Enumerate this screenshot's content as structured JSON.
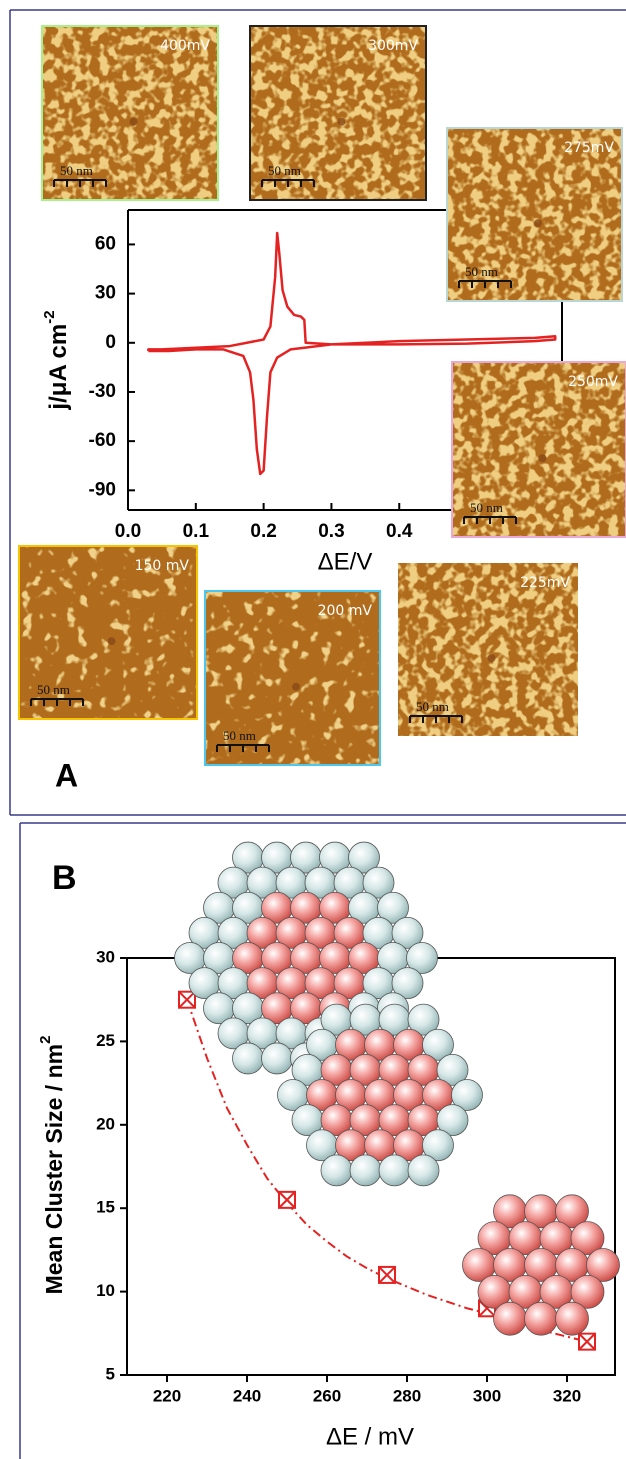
{
  "chart_data": [
    {
      "type": "line",
      "panel_label": "A",
      "xlabel": "ΔE/V",
      "ylabel": "j/μA cm",
      "ylabel_superscript": "-2",
      "color": "#e52222",
      "x": [
        0.03,
        0.06,
        0.1,
        0.14,
        0.17,
        0.18,
        0.185,
        0.19,
        0.195,
        0.2,
        0.205,
        0.21,
        0.22,
        0.24,
        0.26,
        0.3,
        0.4,
        0.5,
        0.6,
        0.63,
        0.63,
        0.6,
        0.5,
        0.4,
        0.3,
        0.262,
        0.26,
        0.255,
        0.245,
        0.235,
        0.228,
        0.223,
        0.22,
        0.217,
        0.21,
        0.2,
        0.15,
        0.1,
        0.05,
        0.03,
        0.03
      ],
      "values": [
        -5,
        -5,
        -4,
        -4,
        -8,
        -18,
        -35,
        -65,
        -80,
        -78,
        -45,
        -18,
        -9,
        -4,
        -3,
        -1,
        1,
        2,
        3,
        4,
        2,
        1,
        -0.5,
        -1,
        -1,
        0,
        14,
        16,
        17,
        22,
        32,
        55,
        67,
        40,
        10,
        2,
        -2,
        -3,
        -4,
        -4,
        -5
      ],
      "xlim": [
        0,
        0.64
      ],
      "ylim": [
        -102,
        81
      ],
      "xticks": [
        {
          "value": 0,
          "label": "0.0"
        },
        {
          "value": 0.1,
          "label": "0.1"
        },
        {
          "value": 0.2,
          "label": "0.2"
        },
        {
          "value": 0.3,
          "label": "0.3"
        },
        {
          "value": 0.4,
          "label": "0.4"
        }
      ],
      "yticks": [
        -90,
        -60,
        -30,
        0,
        30,
        60
      ],
      "insets": [
        {
          "label": "400mV",
          "scale": "50 nm"
        },
        {
          "label": "300mV",
          "scale": "50 nm"
        },
        {
          "label": "275mV",
          "scale": "50 nm"
        },
        {
          "label": "250mV",
          "scale": "50 nm"
        },
        {
          "label": "150 mV",
          "scale": "50 nm"
        },
        {
          "label": "200 mV",
          "scale": "50 nm"
        },
        {
          "label": "225mV",
          "scale": "50 nm"
        }
      ]
    },
    {
      "type": "scatter",
      "panel_label": "B",
      "xlabel": "ΔE / mV",
      "ylabel": "Mean Cluster Size / nm",
      "ylabel_superscript": "2",
      "color": "#e52222",
      "x": [
        225,
        250,
        275,
        300,
        325
      ],
      "values": [
        27.5,
        15.5,
        11,
        9,
        7
      ],
      "fit": {
        "x": [
          225,
          230,
          235,
          240,
          245,
          250,
          255,
          260,
          265,
          270,
          275,
          280,
          285,
          290,
          295,
          300,
          305,
          310,
          315,
          320,
          325
        ],
        "values": [
          27.5,
          24,
          21,
          18.8,
          16.8,
          15.3,
          14,
          13,
          12.1,
          11.4,
          10.8,
          10.3,
          9.8,
          9.4,
          9,
          8.7,
          8.3,
          8,
          7.6,
          7.3,
          7
        ]
      },
      "xlim": [
        210,
        332
      ],
      "ylim": [
        5,
        30
      ],
      "xticks": [
        220,
        240,
        260,
        280,
        300,
        320
      ],
      "yticks": [
        5,
        10,
        15,
        20,
        25,
        30
      ]
    }
  ]
}
